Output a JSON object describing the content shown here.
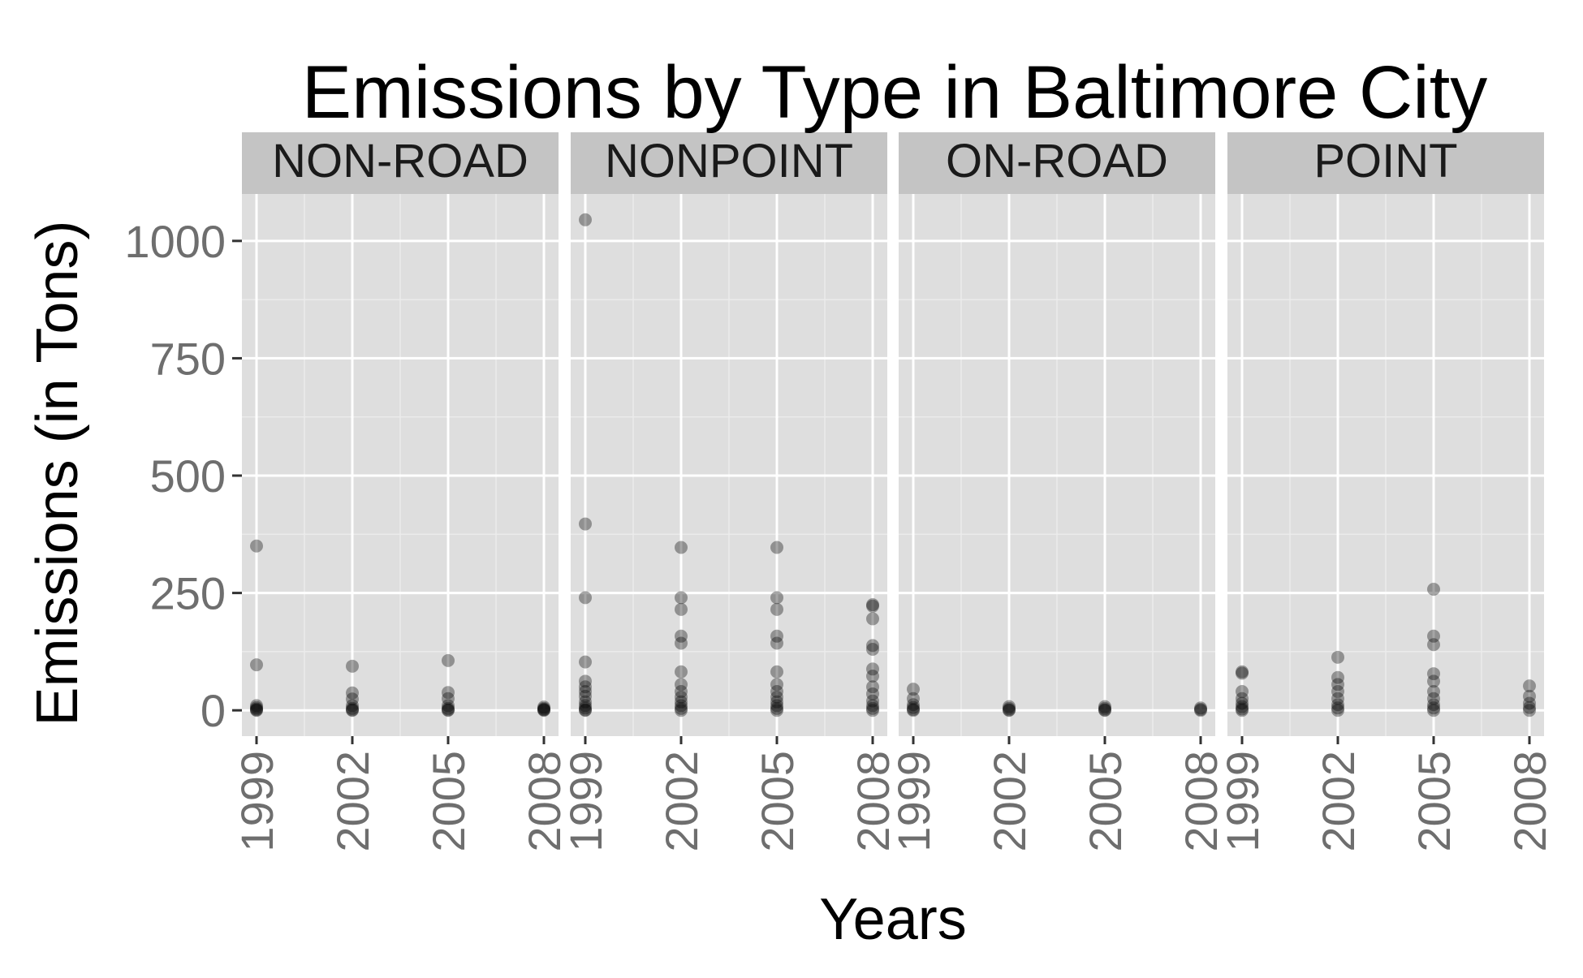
{
  "chart_data": {
    "type": "scatter",
    "title": "Emissions by Type in Baltimore City",
    "xlabel": "Years",
    "ylabel": "Emissions (in Tons)",
    "x_ticks": [
      "1999",
      "2002",
      "2005",
      "2008"
    ],
    "y_ticks": [
      0,
      250,
      500,
      750,
      1000
    ],
    "xlim": [
      1999,
      2008
    ],
    "ylim": [
      -55,
      1100
    ],
    "grid": true,
    "legend": "none",
    "colors": {
      "panel_bg": "#dedede",
      "strip_bg": "#c4c4c4",
      "grid_major": "#ffffff",
      "grid_minor": "#ebebeb",
      "point": "#000000",
      "tick_label": "#6e6e6e"
    },
    "facets": [
      {
        "label": "NON-ROAD",
        "points": [
          {
            "x": 1999,
            "y": 350
          },
          {
            "x": 1999,
            "y": 97
          },
          {
            "x": 1999,
            "y": 10
          },
          {
            "x": 1999,
            "y": 6
          },
          {
            "x": 1999,
            "y": 3
          },
          {
            "x": 1999,
            "y": 1
          },
          {
            "x": 1999,
            "y": 0
          },
          {
            "x": 2002,
            "y": 94
          },
          {
            "x": 2002,
            "y": 37
          },
          {
            "x": 2002,
            "y": 24
          },
          {
            "x": 2002,
            "y": 10
          },
          {
            "x": 2002,
            "y": 4
          },
          {
            "x": 2002,
            "y": 1
          },
          {
            "x": 2002,
            "y": 0
          },
          {
            "x": 2005,
            "y": 106
          },
          {
            "x": 2005,
            "y": 38
          },
          {
            "x": 2005,
            "y": 25
          },
          {
            "x": 2005,
            "y": 10
          },
          {
            "x": 2005,
            "y": 4
          },
          {
            "x": 2005,
            "y": 1
          },
          {
            "x": 2005,
            "y": 0
          },
          {
            "x": 2008,
            "y": 7
          },
          {
            "x": 2008,
            "y": 4
          },
          {
            "x": 2008,
            "y": 2
          },
          {
            "x": 2008,
            "y": 1
          },
          {
            "x": 2008,
            "y": 0
          }
        ]
      },
      {
        "label": "NONPOINT",
        "points": [
          {
            "x": 1999,
            "y": 1045
          },
          {
            "x": 1999,
            "y": 397
          },
          {
            "x": 1999,
            "y": 240
          },
          {
            "x": 1999,
            "y": 103
          },
          {
            "x": 1999,
            "y": 62
          },
          {
            "x": 1999,
            "y": 50
          },
          {
            "x": 1999,
            "y": 40
          },
          {
            "x": 1999,
            "y": 30
          },
          {
            "x": 1999,
            "y": 18
          },
          {
            "x": 1999,
            "y": 10
          },
          {
            "x": 1999,
            "y": 5
          },
          {
            "x": 1999,
            "y": 1
          },
          {
            "x": 1999,
            "y": 0
          },
          {
            "x": 2002,
            "y": 347
          },
          {
            "x": 2002,
            "y": 240
          },
          {
            "x": 2002,
            "y": 215
          },
          {
            "x": 2002,
            "y": 158
          },
          {
            "x": 2002,
            "y": 143
          },
          {
            "x": 2002,
            "y": 82
          },
          {
            "x": 2002,
            "y": 55
          },
          {
            "x": 2002,
            "y": 40
          },
          {
            "x": 2002,
            "y": 28
          },
          {
            "x": 2002,
            "y": 18
          },
          {
            "x": 2002,
            "y": 10
          },
          {
            "x": 2002,
            "y": 4
          },
          {
            "x": 2002,
            "y": 0
          },
          {
            "x": 2005,
            "y": 347
          },
          {
            "x": 2005,
            "y": 240
          },
          {
            "x": 2005,
            "y": 215
          },
          {
            "x": 2005,
            "y": 158
          },
          {
            "x": 2005,
            "y": 143
          },
          {
            "x": 2005,
            "y": 82
          },
          {
            "x": 2005,
            "y": 55
          },
          {
            "x": 2005,
            "y": 40
          },
          {
            "x": 2005,
            "y": 28
          },
          {
            "x": 2005,
            "y": 18
          },
          {
            "x": 2005,
            "y": 10
          },
          {
            "x": 2005,
            "y": 4
          },
          {
            "x": 2005,
            "y": 0
          },
          {
            "x": 2008,
            "y": 225
          },
          {
            "x": 2008,
            "y": 222
          },
          {
            "x": 2008,
            "y": 195
          },
          {
            "x": 2008,
            "y": 138
          },
          {
            "x": 2008,
            "y": 130
          },
          {
            "x": 2008,
            "y": 88
          },
          {
            "x": 2008,
            "y": 73
          },
          {
            "x": 2008,
            "y": 50
          },
          {
            "x": 2008,
            "y": 35
          },
          {
            "x": 2008,
            "y": 20
          },
          {
            "x": 2008,
            "y": 10
          },
          {
            "x": 2008,
            "y": 4
          },
          {
            "x": 2008,
            "y": 0
          }
        ]
      },
      {
        "label": "ON-ROAD",
        "points": [
          {
            "x": 1999,
            "y": 45
          },
          {
            "x": 1999,
            "y": 25
          },
          {
            "x": 1999,
            "y": 12
          },
          {
            "x": 1999,
            "y": 6
          },
          {
            "x": 1999,
            "y": 2
          },
          {
            "x": 1999,
            "y": 0
          },
          {
            "x": 2002,
            "y": 8
          },
          {
            "x": 2002,
            "y": 4
          },
          {
            "x": 2002,
            "y": 1
          },
          {
            "x": 2002,
            "y": 0
          },
          {
            "x": 2005,
            "y": 8
          },
          {
            "x": 2005,
            "y": 4
          },
          {
            "x": 2005,
            "y": 1
          },
          {
            "x": 2005,
            "y": 0
          },
          {
            "x": 2008,
            "y": 5
          },
          {
            "x": 2008,
            "y": 2
          },
          {
            "x": 2008,
            "y": 0
          }
        ]
      },
      {
        "label": "POINT",
        "points": [
          {
            "x": 1999,
            "y": 82
          },
          {
            "x": 1999,
            "y": 79
          },
          {
            "x": 1999,
            "y": 40
          },
          {
            "x": 1999,
            "y": 25
          },
          {
            "x": 1999,
            "y": 15
          },
          {
            "x": 1999,
            "y": 8
          },
          {
            "x": 1999,
            "y": 3
          },
          {
            "x": 1999,
            "y": 0
          },
          {
            "x": 2002,
            "y": 113
          },
          {
            "x": 2002,
            "y": 70
          },
          {
            "x": 2002,
            "y": 55
          },
          {
            "x": 2002,
            "y": 40
          },
          {
            "x": 2002,
            "y": 25
          },
          {
            "x": 2002,
            "y": 12
          },
          {
            "x": 2002,
            "y": 5
          },
          {
            "x": 2002,
            "y": 0
          },
          {
            "x": 2005,
            "y": 258
          },
          {
            "x": 2005,
            "y": 158
          },
          {
            "x": 2005,
            "y": 140
          },
          {
            "x": 2005,
            "y": 78
          },
          {
            "x": 2005,
            "y": 62
          },
          {
            "x": 2005,
            "y": 40
          },
          {
            "x": 2005,
            "y": 25
          },
          {
            "x": 2005,
            "y": 12
          },
          {
            "x": 2005,
            "y": 5
          },
          {
            "x": 2005,
            "y": 0
          },
          {
            "x": 2008,
            "y": 52
          },
          {
            "x": 2008,
            "y": 30
          },
          {
            "x": 2008,
            "y": 15
          },
          {
            "x": 2008,
            "y": 6
          },
          {
            "x": 2008,
            "y": 0
          }
        ]
      }
    ]
  }
}
